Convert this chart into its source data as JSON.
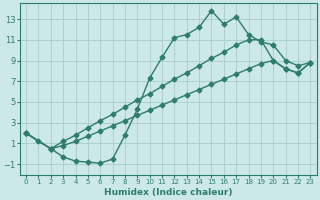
{
  "xlabel": "Humidex (Indice chaleur)",
  "bg_color": "#cce8e8",
  "grid_color": "#aacccc",
  "line_color": "#2d7d6e",
  "xlim": [
    -0.5,
    23.5
  ],
  "ylim": [
    -2.0,
    14.5
  ],
  "xticks": [
    0,
    1,
    2,
    3,
    4,
    5,
    6,
    7,
    8,
    9,
    10,
    11,
    12,
    13,
    14,
    15,
    16,
    17,
    18,
    19,
    20,
    21,
    22,
    23
  ],
  "yticks": [
    -1,
    1,
    3,
    5,
    7,
    9,
    11,
    13
  ],
  "line1_x": [
    0,
    1,
    2,
    3,
    4,
    5,
    6,
    7,
    8,
    9,
    10,
    11,
    12,
    13,
    14,
    15,
    16,
    17,
    18,
    19,
    20,
    21,
    22,
    23
  ],
  "line1_y": [
    2.0,
    1.2,
    0.5,
    -0.3,
    -0.7,
    -0.8,
    -0.9,
    -0.5,
    1.8,
    4.3,
    7.3,
    9.3,
    11.2,
    11.5,
    12.2,
    13.8,
    12.5,
    13.2,
    11.5,
    10.8,
    10.5,
    9.0,
    8.5,
    8.8
  ],
  "line2_x": [
    0,
    2,
    3,
    4,
    5,
    6,
    7,
    8,
    9,
    10,
    11,
    12,
    13,
    14,
    15,
    16,
    17,
    18,
    19,
    20,
    21,
    22,
    23
  ],
  "line2_y": [
    2.0,
    0.5,
    1.2,
    1.8,
    2.5,
    3.2,
    3.8,
    4.5,
    5.2,
    5.8,
    6.5,
    7.2,
    7.8,
    8.5,
    9.2,
    9.8,
    10.5,
    11.0,
    11.0,
    9.0,
    8.2,
    7.8,
    8.8
  ],
  "line3_x": [
    0,
    2,
    3,
    4,
    5,
    6,
    7,
    8,
    9,
    10,
    11,
    12,
    13,
    14,
    15,
    16,
    17,
    18,
    19,
    20,
    21,
    22,
    23
  ],
  "line3_y": [
    2.0,
    0.5,
    0.8,
    1.2,
    1.7,
    2.2,
    2.7,
    3.2,
    3.7,
    4.2,
    4.7,
    5.2,
    5.7,
    6.2,
    6.7,
    7.2,
    7.7,
    8.2,
    8.7,
    9.0,
    8.2,
    7.8,
    8.8
  ]
}
